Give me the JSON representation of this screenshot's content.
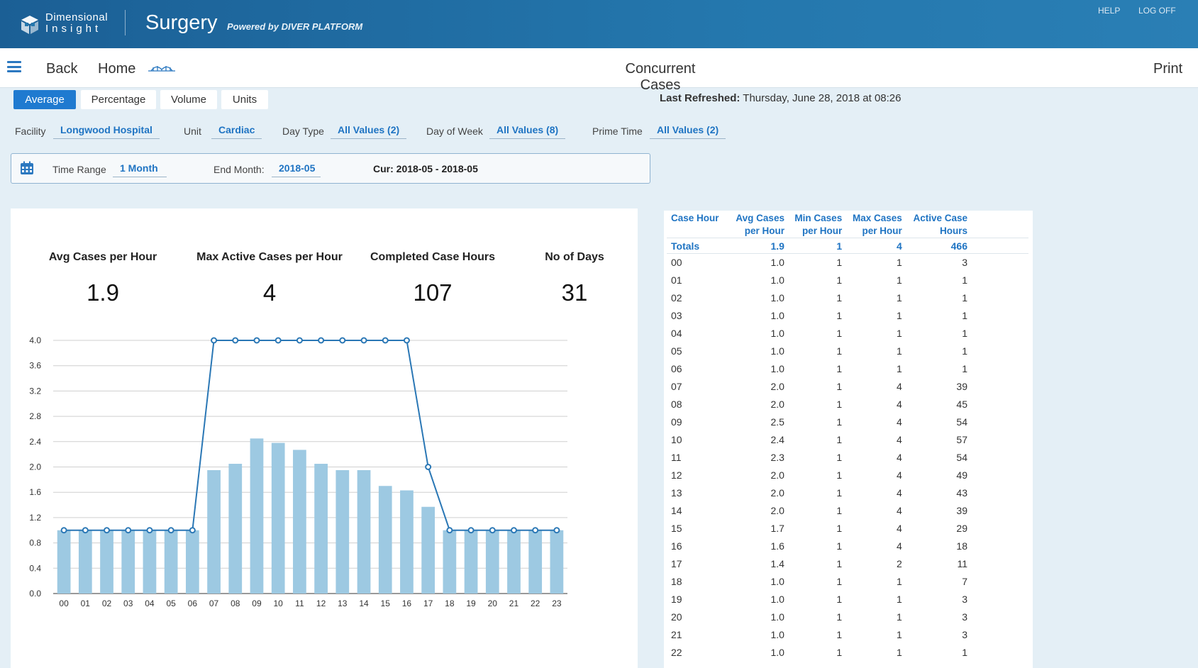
{
  "header": {
    "logo_line1": "Dimensional",
    "logo_line2": "Insight",
    "app_title": "Surgery",
    "powered_by": "Powered by DIVER PLATFORM",
    "help": "HELP",
    "logoff": "LOG OFF"
  },
  "nav": {
    "back": "Back",
    "home": "Home",
    "page_title": "Concurrent Cases",
    "print": "Print"
  },
  "tabs": [
    "Average",
    "Percentage",
    "Volume",
    "Units"
  ],
  "active_tab": "Average",
  "refreshed": {
    "label": "Last Refreshed:",
    "value": "Thursday, June 28, 2018 at 08:26"
  },
  "filters": {
    "facility": {
      "label": "Facility",
      "value": "Longwood Hospital"
    },
    "unit": {
      "label": "Unit",
      "value": "Cardiac"
    },
    "day_type": {
      "label": "Day Type",
      "value": "All Values (2)"
    },
    "day_of_week": {
      "label": "Day of Week",
      "value": "All Values (8)"
    },
    "prime_time": {
      "label": "Prime Time",
      "value": "All Values (2)"
    }
  },
  "time_range": {
    "label": "Time Range",
    "value": "1 Month",
    "end_label": "End Month:",
    "end_value": "2018-05",
    "current": "Cur: 2018-05 - 2018-05"
  },
  "kpis": [
    {
      "label": "Avg Cases per Hour",
      "value": "1.9"
    },
    {
      "label": "Max Active Cases per Hour",
      "value": "4"
    },
    {
      "label": "Completed Case Hours",
      "value": "107"
    },
    {
      "label": "No of Days",
      "value": "31"
    }
  ],
  "chart_data": {
    "type": "bar",
    "categories": [
      "00",
      "01",
      "02",
      "03",
      "04",
      "05",
      "06",
      "07",
      "08",
      "09",
      "10",
      "11",
      "12",
      "13",
      "14",
      "15",
      "16",
      "17",
      "18",
      "19",
      "20",
      "21",
      "22",
      "23"
    ],
    "series": [
      {
        "type": "bar",
        "color": "#9dc9e2",
        "values": [
          1.0,
          1.0,
          1.0,
          1.0,
          1.0,
          1.0,
          1.0,
          1.95,
          2.05,
          2.45,
          2.38,
          2.27,
          2.05,
          1.95,
          1.95,
          1.7,
          1.63,
          1.37,
          1.0,
          1.0,
          1.0,
          1.0,
          1.0,
          1.0
        ]
      },
      {
        "type": "line",
        "color": "#2a77b5",
        "values": [
          1,
          1,
          1,
          1,
          1,
          1,
          1,
          4,
          4,
          4,
          4,
          4,
          4,
          4,
          4,
          4,
          4,
          2,
          1,
          1,
          1,
          1,
          1,
          1
        ]
      }
    ],
    "yticks": [
      "0.0",
      "0.4",
      "0.8",
      "1.2",
      "1.6",
      "2.0",
      "2.4",
      "2.8",
      "3.2",
      "3.6",
      "4.0"
    ],
    "ylim": [
      0,
      4.0
    ],
    "grid": true
  },
  "table": {
    "headers": [
      [
        "Case Hour"
      ],
      [
        "Avg Cases",
        "per Hour"
      ],
      [
        "Min Cases",
        "per Hour"
      ],
      [
        "Max Cases",
        "per Hour"
      ],
      [
        "Active Case",
        "Hours"
      ]
    ],
    "totals": [
      "Totals",
      "1.9",
      "1",
      "4",
      "466"
    ],
    "rows": [
      [
        "00",
        "1.0",
        "1",
        "1",
        "3"
      ],
      [
        "01",
        "1.0",
        "1",
        "1",
        "1"
      ],
      [
        "02",
        "1.0",
        "1",
        "1",
        "1"
      ],
      [
        "03",
        "1.0",
        "1",
        "1",
        "1"
      ],
      [
        "04",
        "1.0",
        "1",
        "1",
        "1"
      ],
      [
        "05",
        "1.0",
        "1",
        "1",
        "1"
      ],
      [
        "06",
        "1.0",
        "1",
        "1",
        "1"
      ],
      [
        "07",
        "2.0",
        "1",
        "4",
        "39"
      ],
      [
        "08",
        "2.0",
        "1",
        "4",
        "45"
      ],
      [
        "09",
        "2.5",
        "1",
        "4",
        "54"
      ],
      [
        "10",
        "2.4",
        "1",
        "4",
        "57"
      ],
      [
        "11",
        "2.3",
        "1",
        "4",
        "54"
      ],
      [
        "12",
        "2.0",
        "1",
        "4",
        "49"
      ],
      [
        "13",
        "2.0",
        "1",
        "4",
        "43"
      ],
      [
        "14",
        "2.0",
        "1",
        "4",
        "39"
      ],
      [
        "15",
        "1.7",
        "1",
        "4",
        "29"
      ],
      [
        "16",
        "1.6",
        "1",
        "4",
        "18"
      ],
      [
        "17",
        "1.4",
        "1",
        "2",
        "11"
      ],
      [
        "18",
        "1.0",
        "1",
        "1",
        "7"
      ],
      [
        "19",
        "1.0",
        "1",
        "1",
        "3"
      ],
      [
        "20",
        "1.0",
        "1",
        "1",
        "3"
      ],
      [
        "21",
        "1.0",
        "1",
        "1",
        "3"
      ],
      [
        "22",
        "1.0",
        "1",
        "1",
        "1"
      ]
    ]
  }
}
